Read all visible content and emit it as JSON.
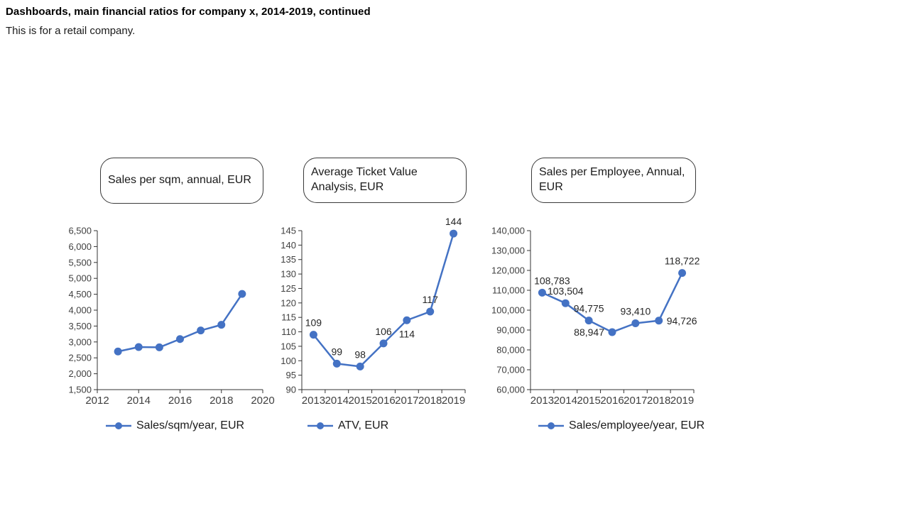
{
  "header": {
    "title": "Dashboards, main financial ratios for company x, 2014-2019, continued",
    "subtitle": "This is for a retail company."
  },
  "accent_color": "#4472C4",
  "axis_color": "#333333",
  "chart_data": [
    {
      "type": "line",
      "box_title": "Sales per sqm, annual, EUR",
      "legend": "Sales/sqm/year, EUR",
      "x_mode": "numeric",
      "x": [
        2013,
        2014,
        2015,
        2016,
        2017,
        2018,
        2019
      ],
      "values": [
        2700,
        2840,
        2830,
        3090,
        3360,
        3540,
        4510
      ],
      "xlim": [
        2012,
        2020
      ],
      "xticks": [
        2012,
        2014,
        2016,
        2018,
        2020
      ],
      "ylim": [
        1500,
        6500
      ],
      "ytick_step": 500,
      "yformat": "comma",
      "show_data_labels": false,
      "grid": false,
      "legend_position": "bottom"
    },
    {
      "type": "line",
      "box_title": "Average Ticket Value Analysis, EUR",
      "legend": "ATV, EUR",
      "x_mode": "category",
      "x": [
        2013,
        2014,
        2015,
        2016,
        2017,
        2018,
        2019
      ],
      "values": [
        109,
        99,
        98,
        106,
        114,
        117,
        144
      ],
      "ylim": [
        90,
        145
      ],
      "ytick_step": 5,
      "yformat": "plain",
      "show_data_labels": true,
      "label_format": "plain",
      "label_positions": [
        "above",
        "above",
        "above",
        "above",
        "below",
        "above",
        "above"
      ],
      "grid": false,
      "legend_position": "bottom"
    },
    {
      "type": "line",
      "box_title": "Sales per Employee, Annual, EUR",
      "legend": "Sales/employee/year, EUR",
      "x_mode": "category",
      "x": [
        2013,
        2014,
        2015,
        2016,
        2017,
        2018,
        2019
      ],
      "values": [
        108783,
        103504,
        94775,
        88947,
        93410,
        94726,
        118722
      ],
      "ylim": [
        60000,
        140000
      ],
      "ytick_step": 10000,
      "yformat": "comma",
      "show_data_labels": true,
      "label_format": "comma",
      "label_positions": [
        "above-right",
        "above",
        "above",
        "left",
        "above",
        "right",
        "above"
      ],
      "grid": false,
      "legend_position": "bottom"
    }
  ]
}
